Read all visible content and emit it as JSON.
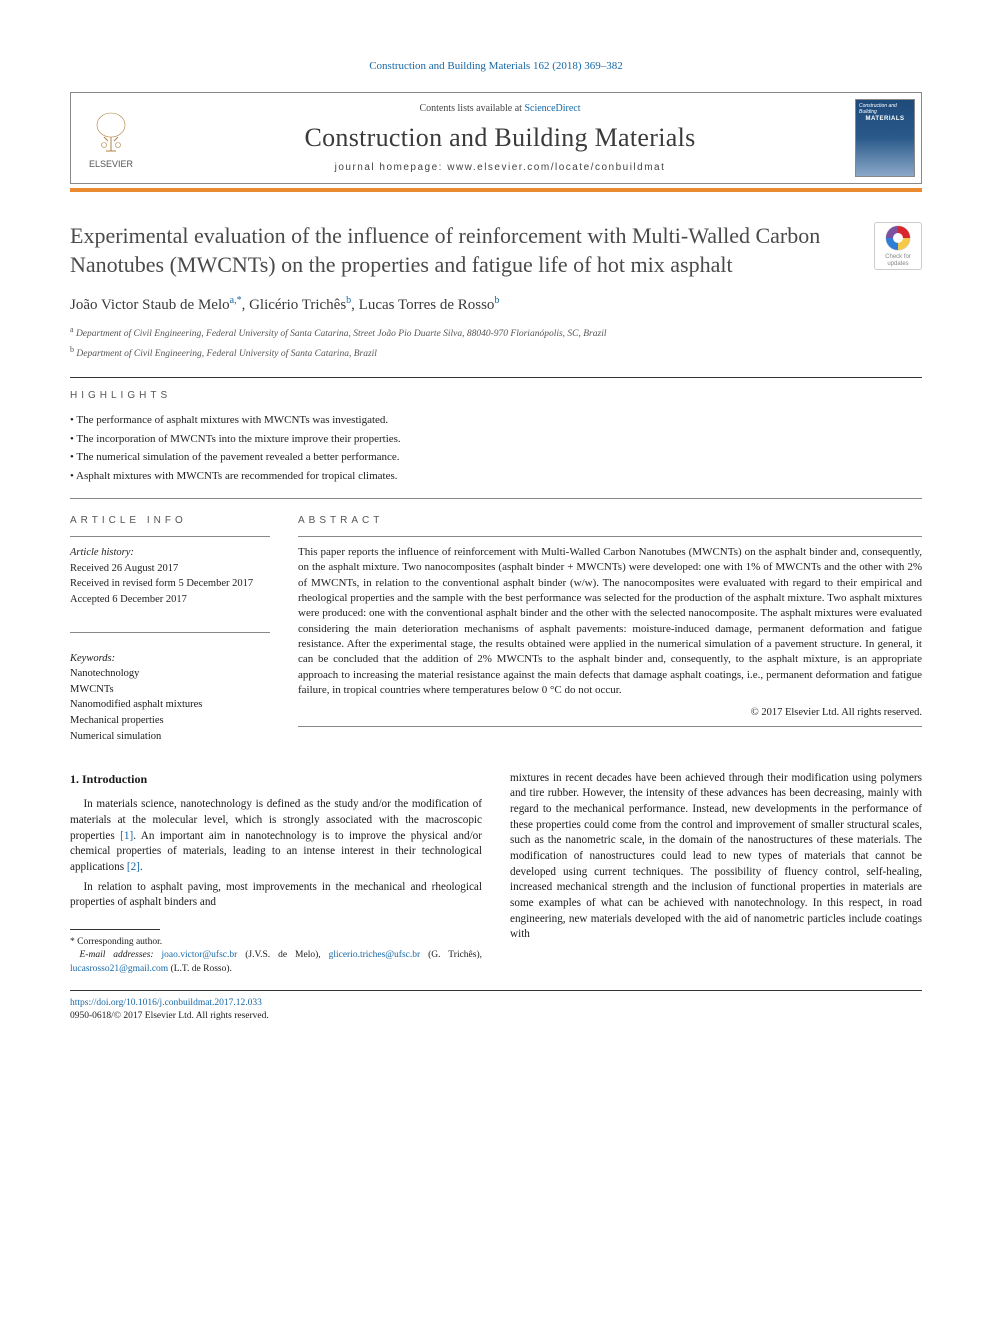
{
  "journal_ref": "Construction and Building Materials 162 (2018) 369–382",
  "header": {
    "contents_prefix": "Contents lists available at ",
    "contents_link": "ScienceDirect",
    "journal_name": "Construction and Building Materials",
    "homepage_prefix": "journal homepage: ",
    "homepage_url": "www.elsevier.com/locate/conbuildmat",
    "publisher": "ELSEVIER",
    "cover_line1": "Construction and Building",
    "cover_line2": "MATERIALS"
  },
  "colors": {
    "link": "#1768a6",
    "accent_bar": "#e98b2e",
    "text": "#1a1a1a",
    "muted": "#555555"
  },
  "crossmark": {
    "line1": "Check for",
    "line2": "updates"
  },
  "title": "Experimental evaluation of the influence of reinforcement with Multi-Walled Carbon Nanotubes (MWCNTs) on the properties and fatigue life of hot mix asphalt",
  "authors_html": {
    "a1_name": "João Victor Staub de Melo",
    "a1_sup": "a,",
    "a1_mark": "*",
    "a2_name": "Glicério Trichês",
    "a2_sup": "b",
    "a3_name": "Lucas Torres de Rosso",
    "a3_sup": "b"
  },
  "affiliations": {
    "a": "Department of Civil Engineering, Federal University of Santa Catarina, Street João Pio Duarte Silva, 88040-970 Florianópolis, SC, Brazil",
    "b": "Department of Civil Engineering, Federal University of Santa Catarina, Brazil"
  },
  "labels": {
    "highlights": "highlights",
    "article_info": "article info",
    "abstract": "abstract",
    "intro_heading": "1. Introduction"
  },
  "highlights": [
    "The performance of asphalt mixtures with MWCNTs was investigated.",
    "The incorporation of MWCNTs into the mixture improve their properties.",
    "The numerical simulation of the pavement revealed a better performance.",
    "Asphalt mixtures with MWCNTs are recommended for tropical climates."
  ],
  "history": {
    "label": "Article history:",
    "received": "Received 26 August 2017",
    "revised": "Received in revised form 5 December 2017",
    "accepted": "Accepted 6 December 2017"
  },
  "keywords": {
    "label": "Keywords:",
    "items": [
      "Nanotechnology",
      "MWCNTs",
      "Nanomodified asphalt mixtures",
      "Mechanical properties",
      "Numerical simulation"
    ]
  },
  "abstract": "This paper reports the influence of reinforcement with Multi-Walled Carbon Nanotubes (MWCNTs) on the asphalt binder and, consequently, on the asphalt mixture. Two nanocomposites (asphalt binder + MWCNTs) were developed: one with 1% of MWCNTs and the other with 2% of MWCNTs, in relation to the conventional asphalt binder (w/w). The nanocomposites were evaluated with regard to their empirical and rheological properties and the sample with the best performance was selected for the production of the asphalt mixture. Two asphalt mixtures were produced: one with the conventional asphalt binder and the other with the selected nanocomposite. The asphalt mixtures were evaluated considering the main deterioration mechanisms of asphalt pavements: moisture-induced damage, permanent deformation and fatigue resistance. After the experimental stage, the results obtained were applied in the numerical simulation of a pavement structure. In general, it can be concluded that the addition of 2% MWCNTs to the asphalt binder and, consequently, to the asphalt mixture, is an appropriate approach to increasing the material resistance against the main defects that damage asphalt coatings, i.e., permanent deformation and fatigue failure, in tropical countries where temperatures below 0 °C do not occur.",
  "copyright": "© 2017 Elsevier Ltd. All rights reserved.",
  "body": {
    "p1": "In materials science, nanotechnology is defined as the study and/or the modification of materials at the molecular level, which is strongly associated with the macroscopic properties [1]. An important aim in nanotechnology is to improve the physical and/or chemical properties of materials, leading to an intense interest in their technological applications [2].",
    "p2": "In relation to asphalt paving, most improvements in the mechanical and rheological properties of asphalt binders and",
    "p3": "mixtures in recent decades have been achieved through their modification using polymers and tire rubber. However, the intensity of these advances has been decreasing, mainly with regard to the mechanical performance. Instead, new developments in the performance of these properties could come from the control and improvement of smaller structural scales, such as the nanometric scale, in the domain of the nanostructures of these materials. The modification of nanostructures could lead to new types of materials that cannot be developed using current techniques. The possibility of fluency control, self-healing, increased mechanical strength and the inclusion of functional properties in materials are some examples of what can be achieved with nanotechnology. In this respect, in road engineering, new materials developed with the aid of nanometric particles include coatings with"
  },
  "footnotes": {
    "corr": "Corresponding author.",
    "email_label": "E-mail addresses:",
    "e1": "joao.victor@ufsc.br",
    "n1": "(J.V.S. de Melo),",
    "e2": "glicerio.triches@ufsc.br",
    "n2": "(G. Trichês),",
    "e3": "lucasrosso21@gmail.com",
    "n3": "(L.T. de Rosso)."
  },
  "footer": {
    "doi": "https://doi.org/10.1016/j.conbuildmat.2017.12.033",
    "issn_line": "0950-0618/© 2017 Elsevier Ltd. All rights reserved."
  }
}
